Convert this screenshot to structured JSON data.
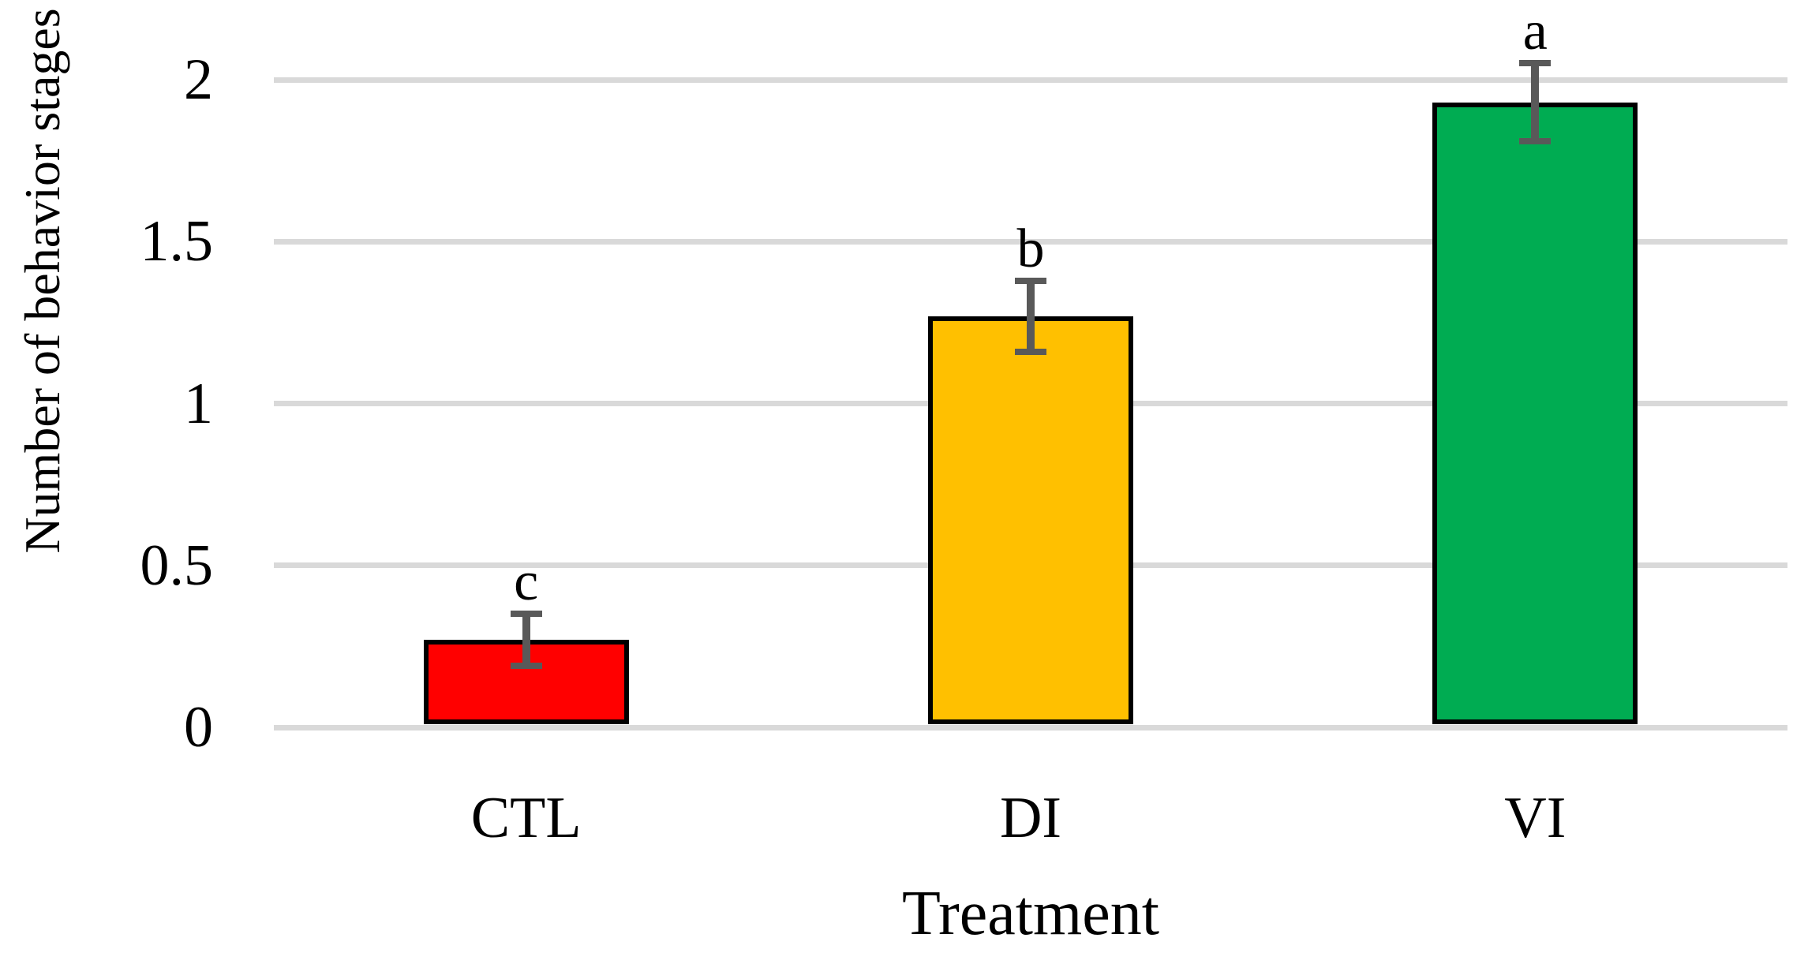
{
  "chart_data": {
    "type": "bar",
    "title": "",
    "xlabel": "Treatment",
    "ylabel": "Number of behavior stages",
    "categories": [
      "CTL",
      "DI",
      "VI"
    ],
    "values": [
      0.27,
      1.27,
      1.93
    ],
    "errors": [
      0.08,
      0.11,
      0.12
    ],
    "sig_letters": [
      "c",
      "b",
      "a"
    ],
    "bar_colors": [
      "#FF0000",
      "#FFC000",
      "#00AC52"
    ],
    "bar_border_color": "#000000",
    "error_bar_color": "#595959",
    "gridline_color": "#D9D9D9",
    "ylim": [
      0,
      2
    ],
    "yticks": [
      0,
      0.5,
      1,
      1.5,
      2
    ],
    "ytick_labels": [
      "0",
      "0.5",
      "1",
      "1.5",
      "2"
    ],
    "grid": true,
    "legend": false
  }
}
